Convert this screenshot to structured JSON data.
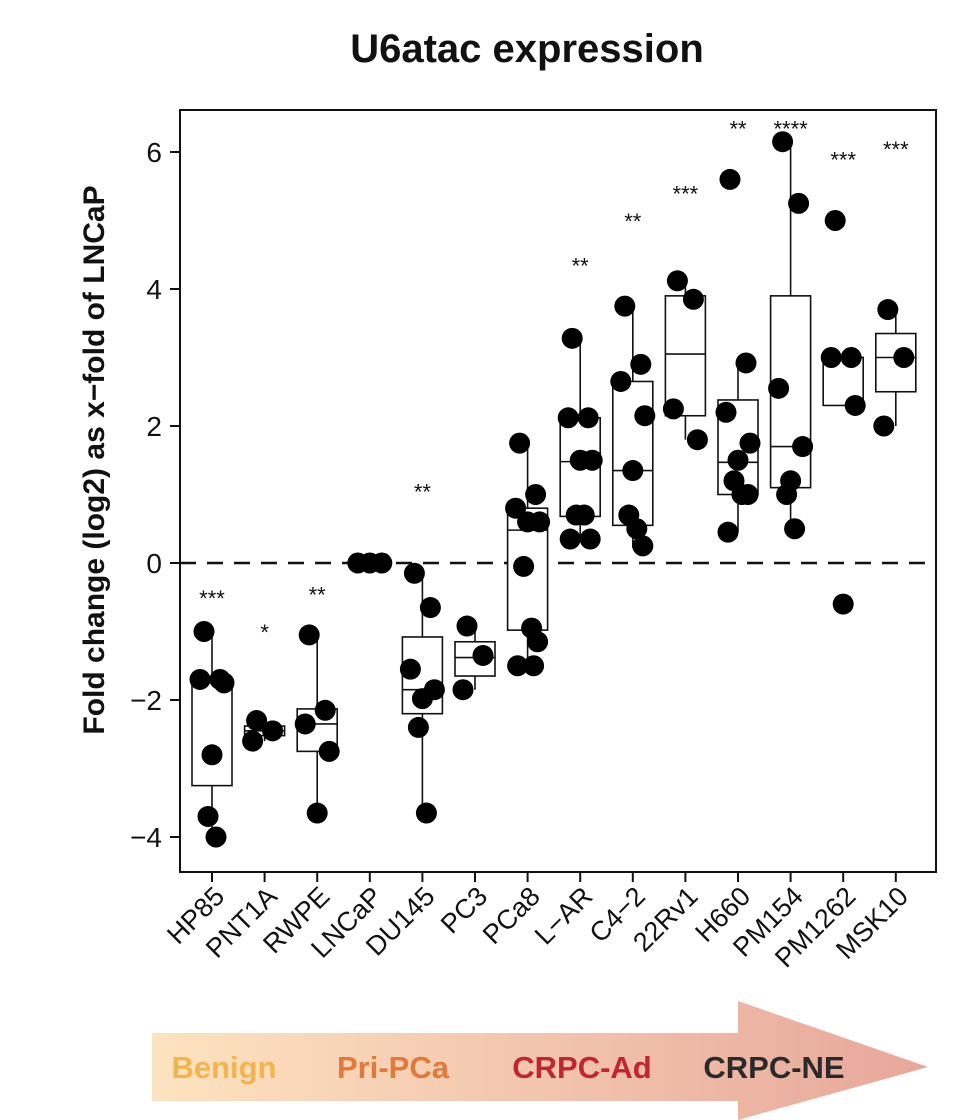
{
  "chart_data": {
    "type": "box",
    "title": "U6atac expression",
    "xlabel": "",
    "ylabel": "Fold change (log2) as x−fold of LNCaP",
    "ylim": [
      -4.5,
      6.6
    ],
    "yticks": [
      -4,
      -2,
      0,
      2,
      4,
      6
    ],
    "ytick_labels": [
      "−4",
      "−2",
      "0",
      "2",
      "4",
      "6"
    ],
    "reference_line": 0,
    "grid": false,
    "categories": [
      "HP85",
      "PNT1A",
      "RWPE",
      "LNCaP",
      "DU145",
      "PC3",
      "PCa8",
      "L−AR",
      "C4−2",
      "22Rv1",
      "H660",
      "PM154",
      "PM1262",
      "MSK10"
    ],
    "significance": [
      "***",
      "*",
      "**",
      "",
      "**",
      "",
      "",
      "**",
      "**",
      "***",
      "**",
      "****",
      "***",
      "***"
    ],
    "significance_y": [
      -0.45,
      -0.95,
      -0.4,
      null,
      1.1,
      null,
      null,
      4.4,
      5.05,
      5.45,
      6.4,
      6.4,
      5.95,
      6.1
    ],
    "boxes": [
      {
        "category": "HP85",
        "q1": -3.25,
        "median": -1.75,
        "q3": -1.68,
        "whisker_low": -4.0,
        "whisker_high": -1.0
      },
      {
        "category": "PNT1A",
        "q1": -2.52,
        "median": -2.45,
        "q3": -2.38,
        "whisker_low": -2.6,
        "whisker_high": -2.3
      },
      {
        "category": "RWPE",
        "q1": -2.75,
        "median": -2.35,
        "q3": -2.13,
        "whisker_low": -3.65,
        "whisker_high": -1.05
      },
      {
        "category": "LNCaP",
        "q1": 0.0,
        "median": 0.0,
        "q3": 0.0,
        "whisker_low": 0.0,
        "whisker_high": 0.0
      },
      {
        "category": "DU145",
        "q1": -2.2,
        "median": -1.85,
        "q3": -1.08,
        "whisker_low": -3.65,
        "whisker_high": -0.15
      },
      {
        "category": "PC3",
        "q1": -1.65,
        "median": -1.38,
        "q3": -1.15,
        "whisker_low": -1.85,
        "whisker_high": -0.92
      },
      {
        "category": "PCa8",
        "q1": -0.98,
        "median": 0.48,
        "q3": 0.8,
        "whisker_low": -1.5,
        "whisker_high": 1.75
      },
      {
        "category": "L−AR",
        "q1": 0.68,
        "median": 1.48,
        "q3": 2.12,
        "whisker_low": 0.35,
        "whisker_high": 3.28
      },
      {
        "category": "C4−2",
        "q1": 0.55,
        "median": 1.35,
        "q3": 2.65,
        "whisker_low": 0.22,
        "whisker_high": 3.75
      },
      {
        "category": "22Rv1",
        "q1": 2.15,
        "median": 3.05,
        "q3": 3.9,
        "whisker_low": 1.8,
        "whisker_high": 4.12
      },
      {
        "category": "H660",
        "q1": 1.0,
        "median": 1.47,
        "q3": 2.38,
        "whisker_low": 0.45,
        "whisker_high": 2.92
      },
      {
        "category": "PM154",
        "q1": 1.1,
        "median": 1.7,
        "q3": 3.9,
        "whisker_low": 0.5,
        "whisker_high": 6.15
      },
      {
        "category": "PM1262",
        "q1": 2.3,
        "median": 3.0,
        "q3": 3.0,
        "whisker_low": 2.3,
        "whisker_high": 3.0
      },
      {
        "category": "MSK10",
        "q1": 2.5,
        "median": 3.0,
        "q3": 3.35,
        "whisker_low": 2.0,
        "whisker_high": 3.7
      }
    ],
    "points": [
      {
        "category": "HP85",
        "values": [
          -1.0,
          -1.7,
          -1.7,
          -1.75,
          -2.8,
          -3.7,
          -4.0
        ]
      },
      {
        "category": "PNT1A",
        "values": [
          -2.3,
          -2.45,
          -2.6
        ]
      },
      {
        "category": "RWPE",
        "values": [
          -1.05,
          -2.15,
          -2.35,
          -2.75,
          -3.65
        ]
      },
      {
        "category": "LNCaP",
        "values": [
          0.0,
          0.0,
          0.0
        ]
      },
      {
        "category": "DU145",
        "values": [
          -0.15,
          -0.65,
          -1.55,
          -1.85,
          -1.98,
          -2.4,
          -3.65
        ]
      },
      {
        "category": "PC3",
        "values": [
          -0.92,
          -1.35,
          -1.85
        ]
      },
      {
        "category": "PCa8",
        "values": [
          1.75,
          1.0,
          0.8,
          0.6,
          0.6,
          -0.05,
          -0.95,
          -1.15,
          -1.5,
          -1.5
        ]
      },
      {
        "category": "L−AR",
        "values": [
          3.28,
          2.12,
          2.12,
          1.5,
          1.5,
          0.7,
          0.7,
          0.35,
          0.35
        ]
      },
      {
        "category": "C4−2",
        "values": [
          3.75,
          2.9,
          2.65,
          2.15,
          1.35,
          0.7,
          0.5,
          0.25
        ]
      },
      {
        "category": "22Rv1",
        "values": [
          4.12,
          3.85,
          2.25,
          1.8
        ]
      },
      {
        "category": "H660",
        "values": [
          5.6,
          2.92,
          2.2,
          1.75,
          1.5,
          1.2,
          1.0,
          1.0,
          0.45
        ]
      },
      {
        "category": "PM154",
        "values": [
          6.15,
          5.25,
          2.55,
          1.7,
          1.2,
          1.0,
          0.5
        ]
      },
      {
        "category": "PM1262",
        "values": [
          5.0,
          3.0,
          3.0,
          2.3,
          -0.6
        ]
      },
      {
        "category": "MSK10",
        "values": [
          3.7,
          3.0,
          2.0
        ]
      }
    ],
    "stage_arrow": {
      "labels": [
        "Benign",
        "Pri-PCa",
        "CRPC-Ad",
        "CRPC-NE"
      ],
      "label_colors": [
        "#f2b54e",
        "#e07a3a",
        "#c0262f",
        "#2a2a2a"
      ],
      "gradient_colors": [
        "#fde3c0",
        "#e7a79a"
      ]
    }
  }
}
